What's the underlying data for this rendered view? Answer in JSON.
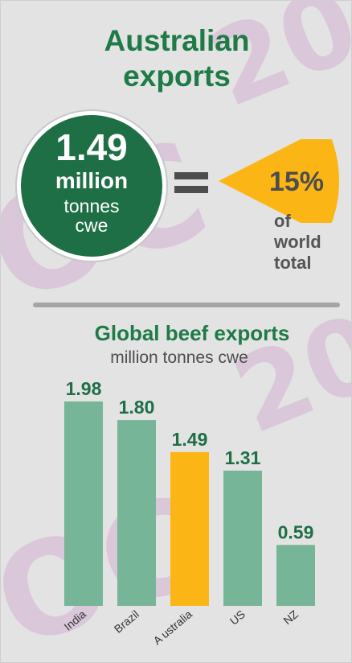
{
  "header": {
    "title_line1": "Australian",
    "title_line2": "exports"
  },
  "summary": {
    "value": "1.49",
    "unit_line1": "million",
    "unit_line2": "tonnes",
    "unit_line3": "cwe",
    "share_value": "15%",
    "share_fraction": 0.15,
    "share_label_line1": "of",
    "share_label_line2": "world",
    "share_label_line3": "total"
  },
  "watermark": {
    "text_a": "20",
    "text_b": "OC",
    "text_c": "20",
    "text_d": "OC"
  },
  "colors": {
    "title_green": "#1e7a47",
    "circle_green": "#1e6f45",
    "bar_green": "#76b597",
    "highlight": "#fbb616",
    "text_grey": "#4d4d4d"
  },
  "chart_data": {
    "type": "bar",
    "title": "Global beef exports",
    "subtitle": "million tonnes cwe",
    "categories": [
      "India",
      "Brazil",
      "A ustralia",
      "US",
      "NZ"
    ],
    "values": [
      1.98,
      1.8,
      1.49,
      1.31,
      0.59
    ],
    "value_labels": [
      "1.98",
      "1.80",
      "1.49",
      "1.31",
      "0.59"
    ],
    "highlight_index": 2,
    "ylim": [
      0,
      2
    ],
    "grid": false,
    "legend": "none"
  }
}
